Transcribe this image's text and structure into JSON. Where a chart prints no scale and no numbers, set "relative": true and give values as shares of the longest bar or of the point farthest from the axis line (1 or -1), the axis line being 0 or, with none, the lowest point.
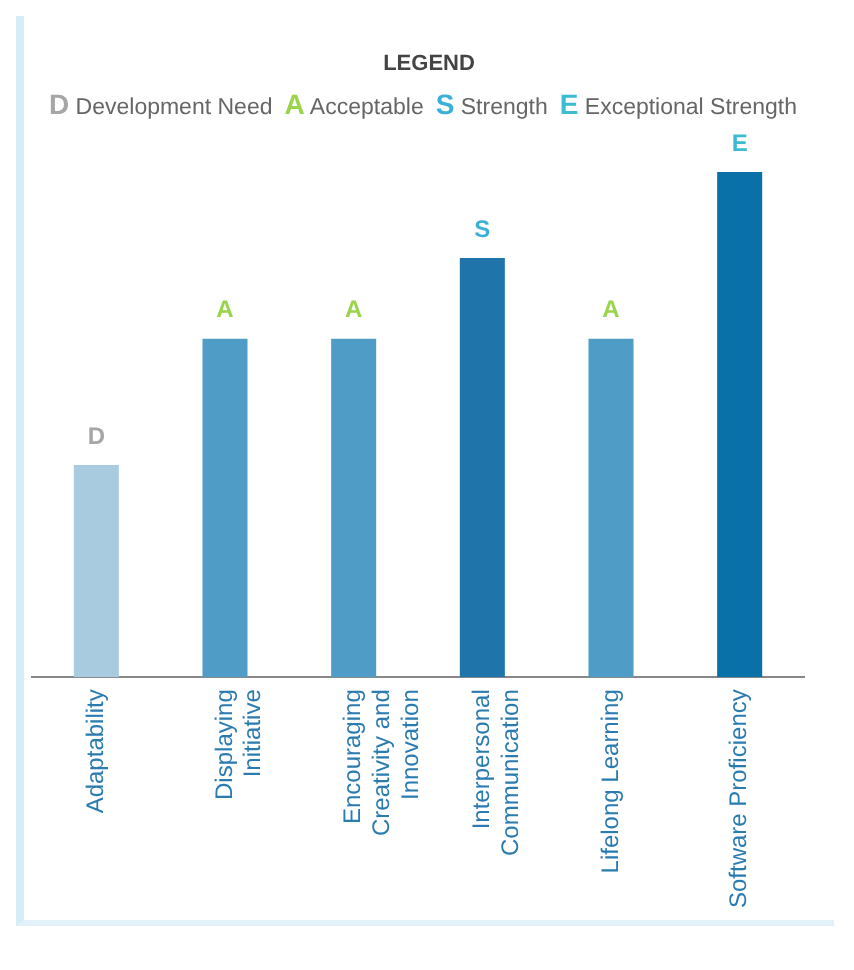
{
  "chart_data": {
    "type": "bar",
    "relative": true,
    "categories": [
      "Adaptability",
      "Displaying Initiative",
      "Encouraging Creativity and Innovation",
      "Interpersonal Communication",
      "Lifelong Learning",
      "Software Proficiency"
    ],
    "values": [
      0.42,
      0.67,
      0.67,
      0.83,
      0.67,
      1
    ],
    "colors": [
      "#a9cbe0",
      "#4f9cc6",
      "#4f9cc6",
      "#1f75aa",
      "#4f9cc6",
      "#0a70a8"
    ],
    "annotations": [
      "LEGEND",
      "D Development Need",
      "A Acceptable",
      "S Strength",
      "E Exceptional Strength",
      {
        "text": "D",
        "x": "Adaptability",
        "y": 0.42
      },
      {
        "text": "A",
        "x": "Displaying Initiative",
        "y": 0.67
      },
      {
        "text": "A",
        "x": "Encouraging Creativity and Innovation",
        "y": 0.67
      },
      {
        "text": "S",
        "x": "Interpersonal Communication",
        "y": 0.83
      },
      {
        "text": "A",
        "x": "Lifelong Learning",
        "y": 0.67
      },
      {
        "text": "E",
        "x": "Software Proficiency",
        "y": 1
      }
    ],
    "grid": false,
    "legend": false
  }
}
